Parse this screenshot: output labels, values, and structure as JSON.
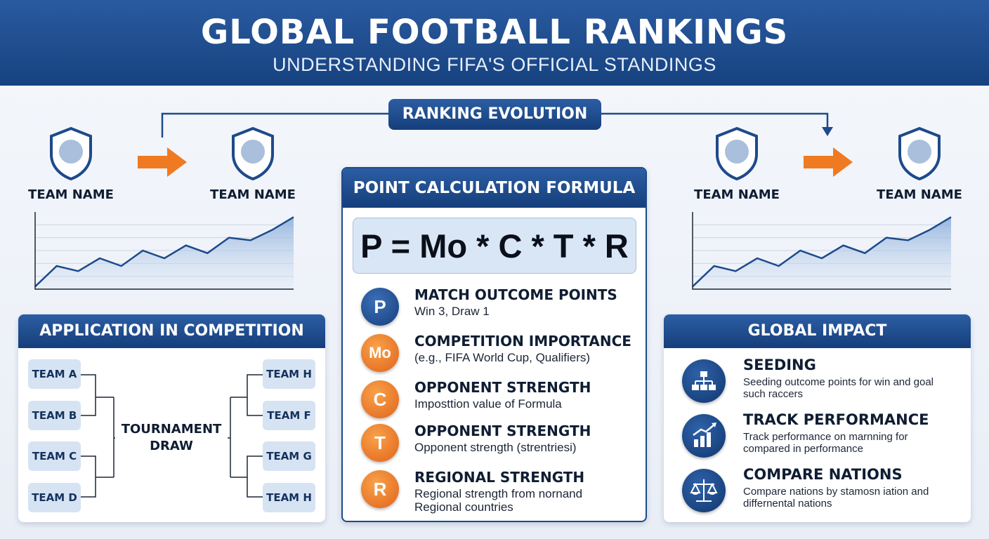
{
  "header": {
    "title": "GLOBAL FOOTBALL RANKINGS",
    "subtitle": "UNDERSTANDING FIFA'S OFFICIAL STANDINGS"
  },
  "evolution": {
    "label": "RANKING EVOLUTION",
    "teams": [
      "TEAM NAME",
      "TEAM NAME",
      "TEAM NAME",
      "TEAM NAME"
    ]
  },
  "chart_data": [
    {
      "type": "area",
      "x": [
        1,
        2,
        3,
        4,
        5,
        6,
        7,
        8,
        9,
        10,
        11,
        12,
        13
      ],
      "values": [
        2,
        18,
        14,
        24,
        18,
        30,
        24,
        34,
        28,
        40,
        38,
        46,
        56
      ],
      "ylim": [
        0,
        60
      ],
      "grid": true
    },
    {
      "type": "area",
      "x": [
        1,
        2,
        3,
        4,
        5,
        6,
        7,
        8,
        9,
        10,
        11,
        12,
        13
      ],
      "values": [
        2,
        18,
        14,
        24,
        18,
        30,
        24,
        34,
        28,
        40,
        38,
        46,
        56
      ],
      "ylim": [
        0,
        60
      ],
      "grid": true
    }
  ],
  "application": {
    "title": "APPLICATION IN COMPETITION",
    "left_teams": [
      "TEAM A",
      "TEAM B",
      "TEAM C",
      "TEAM D"
    ],
    "right_teams": [
      "TEAM H",
      "TEAM F",
      "TEAM G",
      "TEAM H"
    ],
    "center_line1": "TOURNAMENT",
    "center_line2": "DRAW"
  },
  "formula": {
    "title": "POINT CALCULATION FORMULA",
    "equation": "P = Mo * C * T * R",
    "factors": [
      {
        "symbol": "P",
        "color": "blue",
        "title": "MATCH OUTCOME POINTS",
        "desc1": "Win 3, Draw 1",
        "desc2": ""
      },
      {
        "symbol": "Mo",
        "color": "orange",
        "title": "COMPETITION IMPORTANCE",
        "desc1": "(e.g., FIFA World Cup, Qualifiers)",
        "desc2": ""
      },
      {
        "symbol": "C",
        "color": "orange",
        "title": "OPPONENT STRENGTH",
        "desc1": "Imposttion value of Formula",
        "desc2": ""
      },
      {
        "symbol": "T",
        "color": "orange",
        "title": "OPPONENT STRENGTH",
        "desc1": "Opponent strength (strentriesi)",
        "desc2": ""
      },
      {
        "symbol": "R",
        "color": "orange",
        "title": "REGIONAL STRENGTH",
        "desc1": "Regional strength from nornand",
        "desc2": "Regional countries"
      }
    ]
  },
  "impact": {
    "title": "GLOBAL IMPACT",
    "items": [
      {
        "icon": "hierarchy-icon",
        "title": "SEEDING",
        "desc": "Seeding outcome points for win and goal such raccers"
      },
      {
        "icon": "bar-chart-icon",
        "title": "TRACK PERFORMANCE",
        "desc": "Track performance on marnning for compared in performance"
      },
      {
        "icon": "scales-icon",
        "title": "COMPARE NATIONS",
        "desc": "Compare nations by stamosn iation and differnental nations"
      }
    ]
  },
  "colors": {
    "primary": "#16427f",
    "accent_orange": "#f07a22",
    "light_blue": "#d6e3f3"
  }
}
